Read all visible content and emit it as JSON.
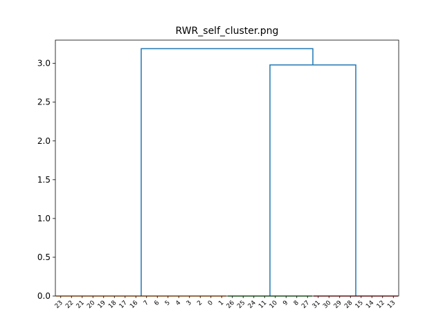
{
  "chart_data": {
    "type": "dendrogram",
    "title": "RWR_self_cluster.png",
    "xlabel": "",
    "ylabel": "",
    "ylim": [
      0,
      3.3
    ],
    "grid": false,
    "yticks": [
      0.0,
      0.5,
      1.0,
      1.5,
      2.0,
      2.5,
      3.0
    ],
    "ytick_labels": [
      "0.0",
      "0.5",
      "1.0",
      "1.5",
      "2.0",
      "2.5",
      "3.0"
    ],
    "leaves": [
      "23",
      "22",
      "21",
      "20",
      "19",
      "18",
      "17",
      "16",
      "7",
      "6",
      "5",
      "4",
      "3",
      "2",
      "0",
      "1",
      "26",
      "25",
      "24",
      "11",
      "10",
      "9",
      "8",
      "27",
      "31",
      "30",
      "29",
      "28",
      "15",
      "14",
      "12",
      "13"
    ],
    "clusters": [
      {
        "color": "#ff7f0e",
        "leaves": [
          "23",
          "22",
          "21",
          "20",
          "19",
          "18",
          "17",
          "16",
          "7",
          "6",
          "5",
          "4",
          "3",
          "2",
          "0",
          "1"
        ],
        "height": 0.0
      },
      {
        "color": "#2ca02c",
        "leaves": [
          "26",
          "25",
          "24",
          "11",
          "10",
          "9",
          "8",
          "27"
        ],
        "height": 0.0
      },
      {
        "color": "#d62728",
        "leaves": [
          "31",
          "30",
          "29",
          "28",
          "15",
          "14",
          "12",
          "13"
        ],
        "height": 0.0
      }
    ],
    "merges": [
      {
        "left": "cluster-2",
        "right": "cluster-3",
        "height": 2.98,
        "color": "#1f77b4"
      },
      {
        "left": "cluster-1",
        "right": "merge-1",
        "height": 3.19,
        "color": "#1f77b4"
      }
    ]
  }
}
